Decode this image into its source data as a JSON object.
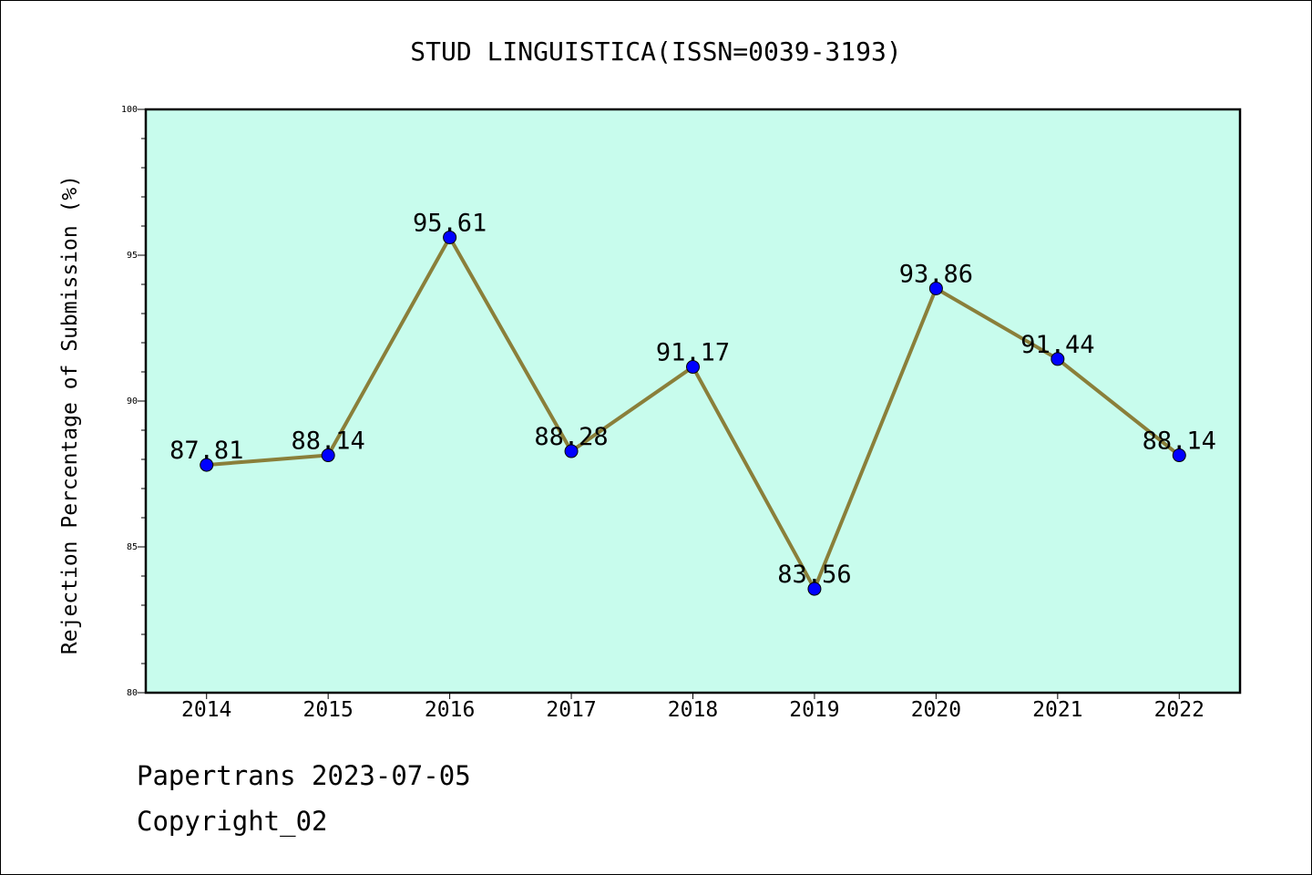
{
  "footer": {
    "line1": "Papertrans 2023-07-05",
    "line2": "Copyright_02"
  },
  "colors": {
    "plot_background": "#c8fced",
    "line": "#8a7f3a",
    "marker": "#0000ff",
    "axis": "#000000"
  },
  "chart_data": {
    "type": "line",
    "title": "STUD LINGUISTICA(ISSN=0039-3193)",
    "xlabel": "",
    "ylabel": "Rejection Percentage of Submission (%)",
    "ylim": [
      80,
      100
    ],
    "y_ticks": [
      80,
      85,
      90,
      95,
      100
    ],
    "grid": false,
    "categories": [
      "2014",
      "2015",
      "2016",
      "2017",
      "2018",
      "2019",
      "2020",
      "2021",
      "2022"
    ],
    "series": [
      {
        "values": [
          87.81,
          88.14,
          95.61,
          88.28,
          91.17,
          83.56,
          93.86,
          91.44,
          88.14
        ],
        "labels": [
          "87.81",
          "88.14",
          "95.61",
          "88.28",
          "91.17",
          "83.56",
          "93.86",
          "91.44",
          "88.14"
        ]
      }
    ]
  }
}
